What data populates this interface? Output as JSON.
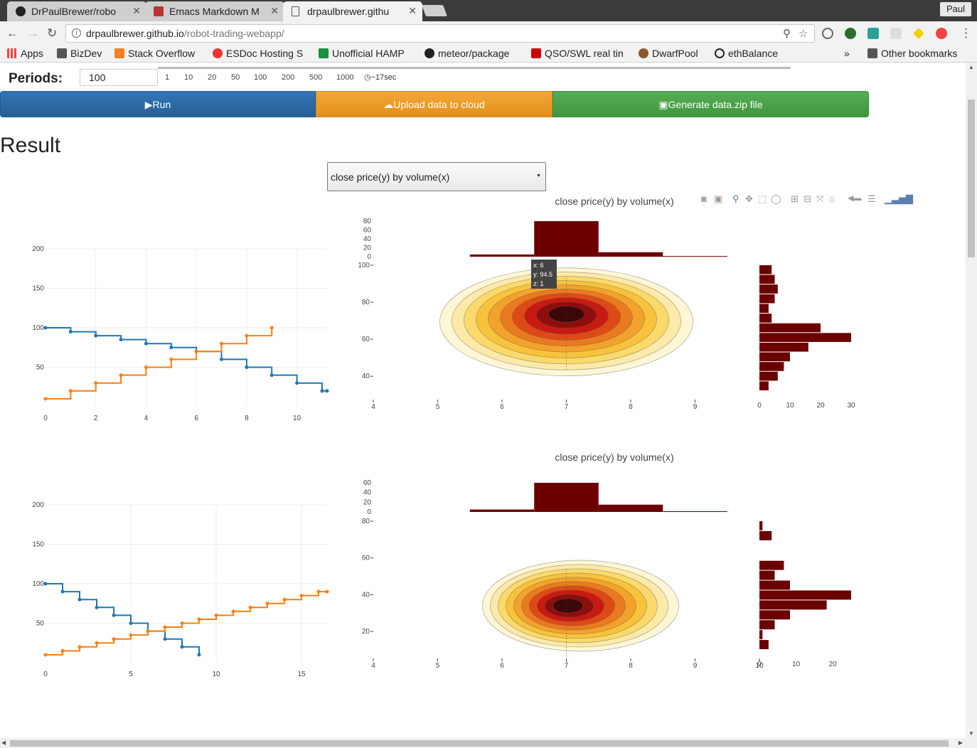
{
  "browser": {
    "tabs": [
      {
        "title": "DrPaulBrewer/robo"
      },
      {
        "title": "Emacs Markdown M"
      },
      {
        "title": "drpaulbrewer.githu"
      }
    ],
    "user": "Paul",
    "url_host": "drpaulbrewer.github.io",
    "url_path": "/robot-trading-webapp/",
    "bookmarks": [
      "Apps",
      "BizDev",
      "Stack Overflow",
      "ESDoc Hosting S",
      "Unofficial HAMP",
      "meteor/package",
      "QSO/SWL real tin",
      "DwarfPool",
      "ethBalance"
    ],
    "more_bookmarks": "»",
    "other_bookmarks": "Other bookmarks"
  },
  "controls": {
    "periods_label": "Periods:",
    "periods_value": "100",
    "period_buttons": [
      "1",
      "10",
      "20",
      "50",
      "100",
      "200",
      "500",
      "1000"
    ],
    "time_estimate": "~17sec",
    "run_label": "Run",
    "upload_label": "Upload data to cloud",
    "generate_label": "Generate data.zip file"
  },
  "result": {
    "title": "Result",
    "selected_view": "close price(y) by volume(x)"
  },
  "tooltip": {
    "x": "x: 6",
    "y": "y: 94.5",
    "z": "z: 1"
  },
  "colors": {
    "blue": "#1f77b4",
    "orange": "#ff7f0e",
    "hist": "#6b0000"
  },
  "chart_data": [
    {
      "type": "line",
      "line_shape": "step",
      "xlim": [
        0,
        11.2
      ],
      "ylim": [
        0,
        200
      ],
      "xticks": [
        0,
        2,
        4,
        6,
        8,
        10
      ],
      "yticks": [
        50,
        100,
        150,
        200
      ],
      "grid": true,
      "series": [
        {
          "color": "#1f77b4",
          "points": [
            [
              0,
              100
            ],
            [
              1,
              100
            ],
            [
              1,
              95
            ],
            [
              2,
              95
            ],
            [
              2,
              90
            ],
            [
              3,
              90
            ],
            [
              3,
              85
            ],
            [
              4,
              85
            ],
            [
              4,
              80
            ],
            [
              5,
              80
            ],
            [
              5,
              75
            ],
            [
              6,
              75
            ],
            [
              6,
              70
            ],
            [
              7,
              70
            ],
            [
              7,
              60
            ],
            [
              8,
              60
            ],
            [
              8,
              50
            ],
            [
              9,
              50
            ],
            [
              9,
              40
            ],
            [
              10,
              40
            ],
            [
              10,
              30
            ],
            [
              11,
              30
            ],
            [
              11,
              20
            ],
            [
              11.2,
              20
            ]
          ]
        },
        {
          "color": "#ff7f0e",
          "points": [
            [
              0,
              10
            ],
            [
              1,
              10
            ],
            [
              1,
              20
            ],
            [
              2,
              20
            ],
            [
              2,
              30
            ],
            [
              3,
              30
            ],
            [
              3,
              40
            ],
            [
              4,
              40
            ],
            [
              4,
              50
            ],
            [
              5,
              50
            ],
            [
              5,
              60
            ],
            [
              6,
              60
            ],
            [
              6,
              70
            ],
            [
              7,
              70
            ],
            [
              7,
              80
            ],
            [
              8,
              80
            ],
            [
              8,
              90
            ],
            [
              9,
              90
            ],
            [
              9,
              100
            ]
          ]
        }
      ]
    },
    {
      "type": "heatmap",
      "title": "close price(y) by volume(x)",
      "xlim": [
        4,
        10
      ],
      "ylim": [
        32,
        100
      ],
      "xticks": [
        4,
        5,
        6,
        7,
        8,
        9
      ],
      "yticks": [
        40,
        60,
        80,
        100
      ],
      "top_hist": {
        "ylim": [
          0,
          80
        ],
        "yticks": [
          0,
          20,
          40,
          60,
          80
        ],
        "bins": [
          [
            5.5,
            6.5,
            5
          ],
          [
            6.5,
            7.5,
            80
          ],
          [
            7.5,
            8.5,
            10
          ],
          [
            8.5,
            9.5,
            0
          ]
        ]
      },
      "right_hist": {
        "xlim": [
          0,
          30
        ],
        "xticks": [
          0,
          10,
          20,
          30
        ]
      }
    },
    {
      "type": "line",
      "line_shape": "step",
      "xlim": [
        0,
        16.5
      ],
      "ylim": [
        0,
        200
      ],
      "xticks": [
        0,
        5,
        10,
        15
      ],
      "yticks": [
        50,
        100,
        150,
        200
      ],
      "grid": true,
      "series": [
        {
          "color": "#1f77b4",
          "points": [
            [
              0,
              100
            ],
            [
              1,
              100
            ],
            [
              1,
              90
            ],
            [
              2,
              90
            ],
            [
              2,
              80
            ],
            [
              3,
              80
            ],
            [
              3,
              70
            ],
            [
              4,
              70
            ],
            [
              4,
              60
            ],
            [
              5,
              60
            ],
            [
              5,
              50
            ],
            [
              6,
              50
            ],
            [
              6,
              40
            ],
            [
              7,
              40
            ],
            [
              7,
              30
            ],
            [
              8,
              30
            ],
            [
              8,
              20
            ],
            [
              9,
              20
            ],
            [
              9,
              10
            ]
          ]
        },
        {
          "color": "#ff7f0e",
          "points": [
            [
              0,
              10
            ],
            [
              1,
              10
            ],
            [
              1,
              15
            ],
            [
              2,
              15
            ],
            [
              2,
              20
            ],
            [
              3,
              20
            ],
            [
              3,
              25
            ],
            [
              4,
              25
            ],
            [
              4,
              30
            ],
            [
              5,
              30
            ],
            [
              5,
              35
            ],
            [
              6,
              35
            ],
            [
              6,
              40
            ],
            [
              7,
              40
            ],
            [
              7,
              45
            ],
            [
              8,
              45
            ],
            [
              8,
              50
            ],
            [
              9,
              50
            ],
            [
              9,
              55
            ],
            [
              10,
              55
            ],
            [
              10,
              60
            ],
            [
              11,
              60
            ],
            [
              11,
              65
            ],
            [
              12,
              65
            ],
            [
              12,
              70
            ],
            [
              13,
              70
            ],
            [
              13,
              75
            ],
            [
              14,
              75
            ],
            [
              14,
              80
            ],
            [
              15,
              80
            ],
            [
              15,
              85
            ],
            [
              16,
              85
            ],
            [
              16,
              90
            ],
            [
              16.5,
              90
            ]
          ]
        }
      ]
    },
    {
      "type": "heatmap",
      "title": "close price(y) by volume(x)",
      "xlim": [
        4,
        10
      ],
      "ylim": [
        10,
        80
      ],
      "xticks": [
        4,
        5,
        6,
        7,
        8,
        9,
        10
      ],
      "yticks": [
        20,
        40,
        60,
        80
      ],
      "top_hist": {
        "ylim": [
          0,
          60
        ],
        "yticks": [
          0,
          20,
          40,
          60
        ],
        "bins": [
          [
            5.5,
            6.5,
            5
          ],
          [
            6.5,
            7.5,
            60
          ],
          [
            7.5,
            8.5,
            15
          ],
          [
            8.5,
            9.5,
            1
          ]
        ]
      },
      "right_hist": {
        "xlim": [
          0,
          25
        ],
        "xticks": [
          0,
          10,
          20
        ]
      }
    }
  ]
}
